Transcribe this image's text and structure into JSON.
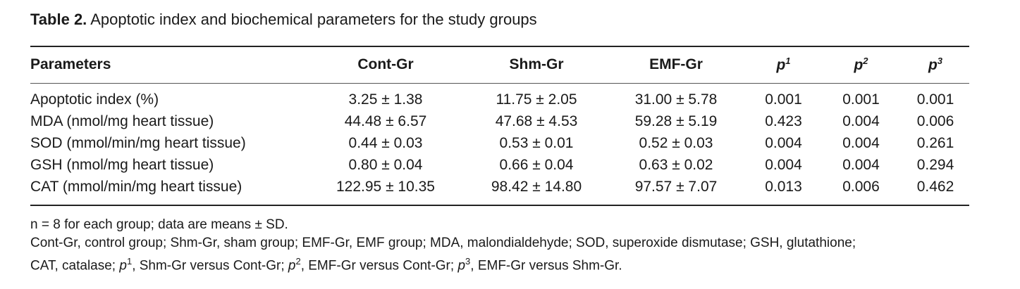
{
  "caption": {
    "label": "Table 2.",
    "title": "Apoptotic index and biochemical parameters for the study groups"
  },
  "table": {
    "headers": {
      "parameters": "Parameters",
      "cont": "Cont-Gr",
      "shm": "Shm-Gr",
      "emf": "EMF-Gr",
      "p1_letter": "p",
      "p1_sup": "1",
      "p2_letter": "p",
      "p2_sup": "2",
      "p3_letter": "p",
      "p3_sup": "3"
    },
    "rows": [
      [
        "Apoptotic index (%)",
        "3.25 ± 1.38",
        "11.75 ± 2.05",
        "31.00 ± 5.78",
        "0.001",
        "0.001",
        "0.001"
      ],
      [
        "MDA (nmol/mg heart tissue)",
        "44.48 ± 6.57",
        "47.68 ± 4.53",
        "59.28 ± 5.19",
        "0.423",
        "0.004",
        "0.006"
      ],
      [
        "SOD (mmol/min/mg heart tissue)",
        "0.44 ± 0.03",
        "0.53 ± 0.01",
        "0.52 ± 0.03",
        "0.004",
        "0.004",
        "0.261"
      ],
      [
        "GSH (nmol/mg heart tissue)",
        "0.80 ± 0.04",
        "0.66 ± 0.04",
        "0.63 ± 0.02",
        "0.004",
        "0.004",
        "0.294"
      ],
      [
        "CAT (mmol/min/mg heart tissue)",
        "122.95 ± 10.35",
        "98.42 ± 14.80",
        "97.57 ± 7.07",
        "0.013",
        "0.006",
        "0.462"
      ]
    ]
  },
  "notes": {
    "line1": "n = 8 for each group; data are means ± SD.",
    "line2": "Cont-Gr, control group; Shm-Gr, sham group; EMF-Gr, EMF group; MDA, malondialdehyde; SOD, superoxide dismutase; GSH, glutathione;",
    "line3_a": "CAT, catalase; ",
    "p_letter": "p",
    "sup1": "1",
    "line3_b": ", Shm-Gr versus Cont-Gr; ",
    "sup2": "2",
    "line3_c": ", EMF-Gr versus Cont-Gr; ",
    "sup3": "3",
    "line3_d": ", EMF-Gr versus Shm-Gr."
  }
}
